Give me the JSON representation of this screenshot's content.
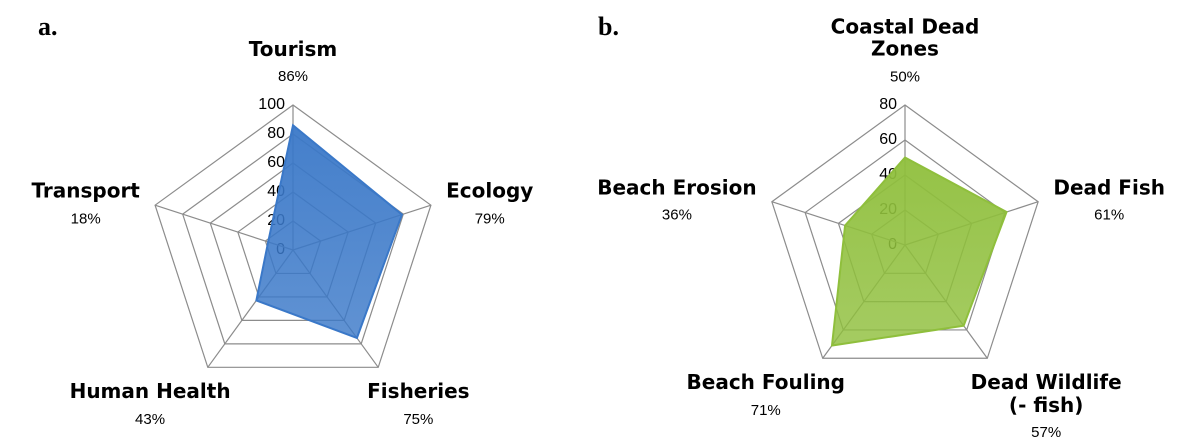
{
  "chart_data": [
    {
      "type": "radar",
      "panel": "a.",
      "categories": [
        "Tourism",
        "Ecology",
        "Fisheries",
        "Human Health",
        "Transport"
      ],
      "values": [
        86,
        79,
        75,
        43,
        18
      ],
      "value_labels": [
        "86%",
        "79%",
        "75%",
        "43%",
        "18%"
      ],
      "ylim": [
        0,
        100
      ],
      "yticks": [
        0,
        20,
        40,
        60,
        80,
        100
      ],
      "color": "#3a78c8",
      "grid": true
    },
    {
      "type": "radar",
      "panel": "b.",
      "categories": [
        "Coastal Dead Zones",
        "Dead Fish",
        "Dead Wildlife (- fish)",
        "Beach Fouling",
        "Beach Erosion"
      ],
      "values": [
        50,
        61,
        57,
        71,
        36
      ],
      "value_labels": [
        "50%",
        "61%",
        "57%",
        "71%",
        "36%"
      ],
      "ylim": [
        0,
        80
      ],
      "yticks": [
        0,
        20,
        40,
        60,
        80
      ],
      "color": "#8fbf3c",
      "grid": true
    }
  ]
}
